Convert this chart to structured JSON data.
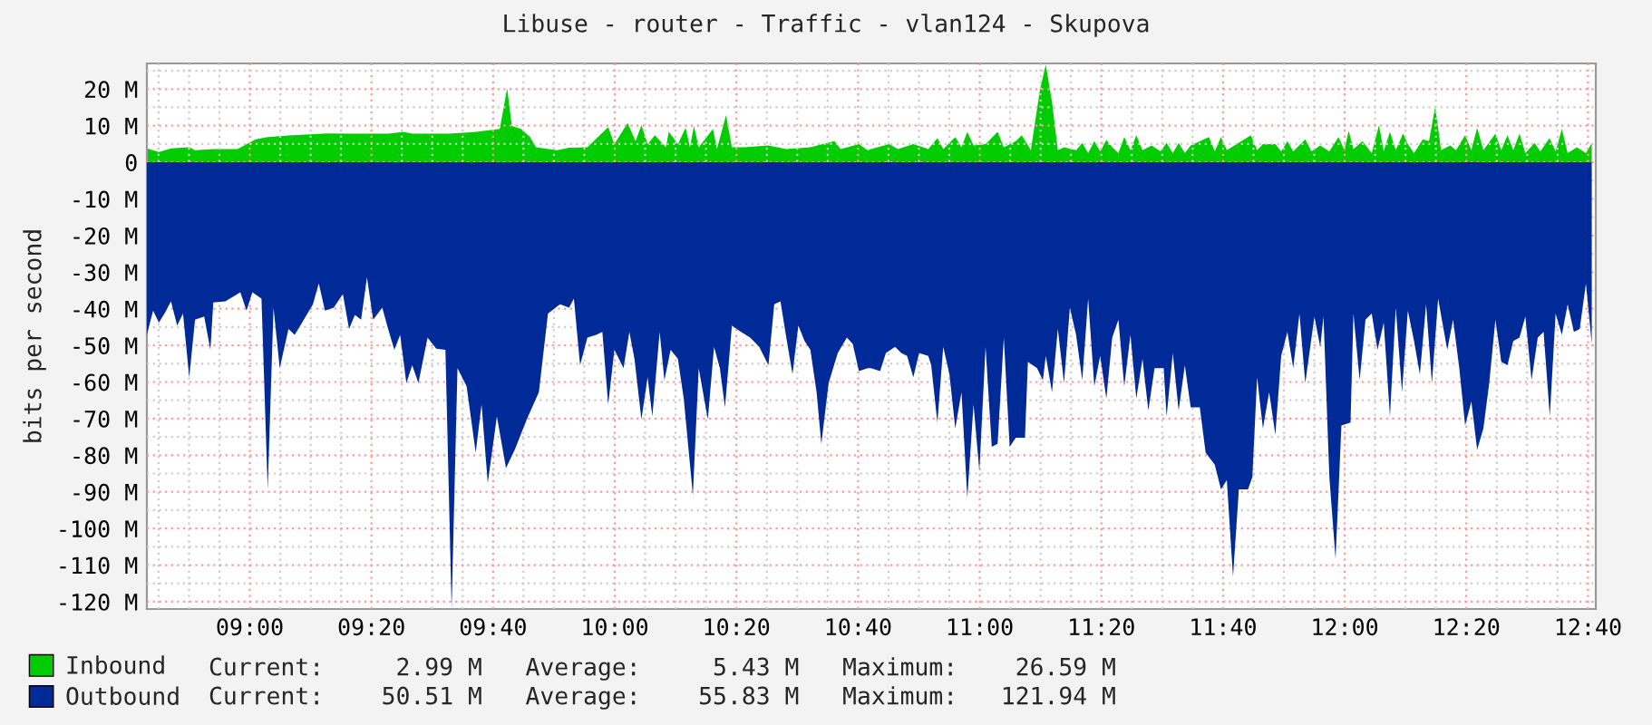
{
  "chart_data": {
    "type": "area",
    "title": "Libuse - router - Traffic - vlan124 - Skupova",
    "ylabel": "bits per second",
    "xlim": [
      8.718,
      12.688
    ],
    "xticks": [
      {
        "value": 9,
        "label": "09:00"
      },
      {
        "value": 9.3333,
        "label": "09:20"
      },
      {
        "value": 9.6667,
        "label": "09:40"
      },
      {
        "value": 10,
        "label": "10:00"
      },
      {
        "value": 10.3333,
        "label": "10:20"
      },
      {
        "value": 10.6667,
        "label": "10:40"
      },
      {
        "value": 11,
        "label": "11:00"
      },
      {
        "value": 11.3333,
        "label": "11:20"
      },
      {
        "value": 11.6667,
        "label": "11:40"
      },
      {
        "value": 12,
        "label": "12:00"
      },
      {
        "value": 12.3333,
        "label": "12:20"
      },
      {
        "value": 12.6667,
        "label": "12:40"
      }
    ],
    "ylim": [
      -122,
      27
    ],
    "yticks": [
      {
        "value": 20,
        "label": "20 M"
      },
      {
        "value": 10,
        "label": "10 M"
      },
      0,
      {
        "value": -10,
        "label": "-10 M"
      },
      {
        "value": -20,
        "label": "-20 M"
      },
      {
        "value": -30,
        "label": "-30 M"
      },
      {
        "value": -40,
        "label": "-40 M"
      },
      {
        "value": -50,
        "label": "-50 M"
      },
      {
        "value": -60,
        "label": "-60 M"
      },
      {
        "value": -70,
        "label": "-70 M"
      },
      {
        "value": -80,
        "label": "-80 M"
      },
      {
        "value": -90,
        "label": "-90 M"
      },
      {
        "value": -100,
        "label": "-100 M"
      },
      {
        "value": -110,
        "label": "-110 M"
      },
      {
        "value": -120,
        "label": "-120 M"
      }
    ],
    "grid": true,
    "legend": "bottom",
    "annotations": [
      "Current:     2.99 M   Average:     5.43 M   Maximum:    26.59 M",
      "Current:    50.51 M   Average:    55.83 M   Maximum:   121.94 M"
    ],
    "series": [
      {
        "name": "Inbound",
        "color": "#00cc00",
        "x": [
          8.718,
          8.751,
          8.784,
          8.834,
          8.85,
          8.9,
          8.966,
          9.016,
          9.049,
          9.115,
          9.214,
          9.28,
          9.379,
          9.421,
          9.445,
          9.545,
          9.619,
          9.685,
          9.705,
          9.718,
          9.743,
          9.768,
          9.784,
          9.842,
          9.875,
          9.925,
          9.982,
          9.999,
          10.035,
          10.057,
          10.073,
          10.09,
          10.11,
          10.14,
          10.148,
          10.173,
          10.194,
          10.206,
          10.217,
          10.23,
          10.269,
          10.28,
          10.305,
          10.321,
          10.354,
          10.421,
          10.47,
          10.536,
          10.602,
          10.619,
          10.669,
          10.693,
          10.702,
          10.752,
          10.776,
          10.818,
          10.859,
          10.884,
          10.9,
          10.933,
          10.95,
          10.966,
          10.983,
          11.016,
          11.049,
          11.066,
          11.099,
          11.115,
          11.14,
          11.165,
          11.181,
          11.198,
          11.214,
          11.231,
          11.264,
          11.281,
          11.297,
          11.314,
          11.33,
          11.347,
          11.363,
          11.38,
          11.396,
          11.413,
          11.429,
          11.446,
          11.471,
          11.495,
          11.512,
          11.529,
          11.545,
          11.562,
          11.578,
          11.628,
          11.644,
          11.661,
          11.677,
          11.743,
          11.76,
          11.776,
          11.81,
          11.826,
          11.843,
          11.859,
          11.892,
          11.909,
          11.933,
          11.958,
          11.983,
          11.999,
          12.011,
          12.024,
          12.049,
          12.074,
          12.094,
          12.107,
          12.124,
          12.14,
          12.16,
          12.173,
          12.19,
          12.214,
          12.231,
          12.248,
          12.264,
          12.289,
          12.305,
          12.33,
          12.347,
          12.363,
          12.38,
          12.413,
          12.429,
          12.446,
          12.462,
          12.479,
          12.495,
          12.52,
          12.536,
          12.561,
          12.578,
          12.595,
          12.611,
          12.636,
          12.661,
          12.677
        ],
        "values": [
          3.8,
          2.8,
          3.8,
          4.1,
          3.3,
          3.6,
          3.6,
          6.3,
          6.9,
          7.4,
          7.9,
          7.8,
          7.8,
          8.3,
          7.8,
          7.8,
          8.3,
          9.1,
          20.2,
          9.9,
          9.1,
          6.9,
          4.1,
          3.3,
          4.0,
          4.1,
          9.6,
          5.0,
          10.7,
          5.8,
          10.2,
          5.0,
          7.4,
          4.1,
          8.3,
          5.0,
          9.4,
          4.1,
          9.9,
          4.1,
          9.1,
          3.6,
          12.9,
          4.1,
          4.1,
          4.6,
          3.6,
          4.1,
          5.8,
          3.6,
          5.0,
          3.3,
          3.6,
          5.0,
          3.6,
          5.0,
          3.6,
          6.6,
          3.6,
          6.9,
          4.1,
          8.3,
          4.6,
          5.0,
          8.3,
          4.1,
          5.8,
          7.4,
          3.3,
          19.8,
          26.6,
          16.5,
          3.3,
          4.1,
          3.3,
          5.3,
          2.5,
          5.8,
          3.0,
          6.1,
          4.1,
          2.5,
          6.9,
          3.3,
          7.4,
          3.3,
          4.6,
          3.0,
          5.3,
          2.5,
          5.3,
          2.5,
          4.6,
          6.9,
          3.0,
          6.9,
          3.3,
          7.4,
          3.3,
          5.0,
          5.0,
          3.0,
          5.8,
          3.0,
          6.3,
          3.0,
          4.6,
          3.0,
          6.9,
          3.3,
          8.6,
          3.6,
          5.8,
          2.5,
          10.2,
          3.0,
          8.3,
          3.3,
          7.9,
          5.0,
          2.5,
          6.3,
          5.8,
          15.2,
          3.3,
          4.6,
          3.3,
          7.4,
          3.3,
          9.4,
          3.3,
          7.8,
          3.3,
          7.4,
          3.3,
          7.8,
          2.5,
          5.3,
          3.0,
          6.6,
          3.0,
          9.1,
          2.5,
          4.1,
          2.5,
          5.3
        ]
      },
      {
        "name": "Outbound",
        "color": "#002a97",
        "x": [
          8.718,
          8.735,
          8.751,
          8.768,
          8.784,
          8.801,
          8.817,
          8.834,
          8.85,
          8.875,
          8.892,
          8.9,
          8.933,
          8.974,
          8.991,
          9.007,
          9.032,
          9.049,
          9.065,
          9.082,
          9.106,
          9.123,
          9.148,
          9.173,
          9.189,
          9.206,
          9.23,
          9.255,
          9.272,
          9.288,
          9.305,
          9.321,
          9.338,
          9.363,
          9.379,
          9.396,
          9.412,
          9.429,
          9.445,
          9.462,
          9.487,
          9.511,
          9.536,
          9.553,
          9.569,
          9.594,
          9.619,
          9.635,
          9.652,
          9.677,
          9.702,
          9.726,
          9.759,
          9.792,
          9.817,
          9.85,
          9.875,
          9.888,
          9.905,
          9.925,
          9.949,
          9.966,
          9.982,
          9.999,
          10.024,
          10.04,
          10.054,
          10.073,
          10.09,
          10.103,
          10.123,
          10.136,
          10.153,
          10.173,
          10.189,
          10.214,
          10.23,
          10.255,
          10.272,
          10.288,
          10.302,
          10.321,
          10.346,
          10.371,
          10.396,
          10.421,
          10.437,
          10.454,
          10.47,
          10.487,
          10.503,
          10.52,
          10.536,
          10.553,
          10.566,
          10.586,
          10.611,
          10.636,
          10.652,
          10.669,
          10.693,
          10.702,
          10.727,
          10.743,
          10.768,
          10.785,
          10.801,
          10.818,
          10.834,
          10.859,
          10.867,
          10.884,
          10.9,
          10.917,
          10.933,
          10.95,
          10.966,
          10.983,
          10.999,
          11.016,
          11.033,
          11.049,
          11.066,
          11.082,
          11.099,
          11.124,
          11.132,
          11.157,
          11.173,
          11.181,
          11.198,
          11.214,
          11.231,
          11.247,
          11.264,
          11.281,
          11.297,
          11.314,
          11.33,
          11.347,
          11.363,
          11.38,
          11.396,
          11.413,
          11.429,
          11.446,
          11.462,
          11.479,
          11.504,
          11.512,
          11.529,
          11.545,
          11.562,
          11.578,
          11.603,
          11.619,
          11.644,
          11.661,
          11.677,
          11.694,
          11.71,
          11.735,
          11.747,
          11.76,
          11.776,
          11.793,
          11.81,
          11.826,
          11.843,
          11.859,
          11.876,
          11.892,
          11.917,
          11.933,
          11.942,
          11.958,
          11.975,
          11.991,
          12.016,
          12.024,
          12.041,
          12.057,
          12.074,
          12.09,
          12.107,
          12.124,
          12.14,
          12.157,
          12.173,
          12.19,
          12.206,
          12.223,
          12.239,
          12.256,
          12.281,
          12.297,
          12.314,
          12.33,
          12.347,
          12.363,
          12.38,
          12.396,
          12.413,
          12.429,
          12.446,
          12.462,
          12.479,
          12.495,
          12.512,
          12.529,
          12.545,
          12.562,
          12.578,
          12.595,
          12.611,
          12.628,
          12.644,
          12.661,
          12.677
        ],
        "values": [
          -47.1,
          -40.5,
          -43.8,
          -41.0,
          -38.0,
          -44.6,
          -41.3,
          -58.7,
          -43.0,
          -42.1,
          -51.2,
          -38.3,
          -38.0,
          -35.5,
          -40.5,
          -35.5,
          -37.2,
          -89.3,
          -39.7,
          -56.2,
          -45.5,
          -47.1,
          -43.0,
          -38.8,
          -33.1,
          -40.5,
          -39.7,
          -36.0,
          -45.5,
          -41.7,
          -43.0,
          -31.4,
          -43.0,
          -39.7,
          -45.5,
          -51.2,
          -47.1,
          -60.3,
          -55.4,
          -60.3,
          -47.9,
          -50.9,
          -51.2,
          -121.9,
          -56.2,
          -61.2,
          -79.3,
          -66.1,
          -87.6,
          -69.4,
          -83.5,
          -78.5,
          -70.2,
          -62.8,
          -41.3,
          -38.8,
          -39.7,
          -37.2,
          -55.4,
          -47.9,
          -47.1,
          -46.3,
          -66.1,
          -51.2,
          -56.2,
          -46.3,
          -53.7,
          -70.2,
          -58.7,
          -69.4,
          -46.3,
          -59.5,
          -51.2,
          -53.7,
          -64.5,
          -90.9,
          -56.2,
          -70.2,
          -50.4,
          -56.2,
          -66.9,
          -44.6,
          -46.3,
          -47.9,
          -50.4,
          -55.4,
          -38.8,
          -38.0,
          -47.9,
          -57.9,
          -44.6,
          -48.8,
          -51.2,
          -62.8,
          -76.9,
          -60.3,
          -52.1,
          -47.9,
          -49.6,
          -57.0,
          -56.2,
          -56.2,
          -57.0,
          -52.1,
          -50.4,
          -52.1,
          -52.9,
          -58.7,
          -52.1,
          -52.9,
          -55.4,
          -71.1,
          -50.4,
          -57.9,
          -72.7,
          -62.8,
          -91.7,
          -66.1,
          -84.3,
          -50.4,
          -77.7,
          -76.9,
          -47.9,
          -77.7,
          -75.2,
          -75.2,
          -54.5,
          -56.2,
          -59.5,
          -52.9,
          -62.8,
          -45.5,
          -60.3,
          -39.7,
          -47.1,
          -59.5,
          -37.2,
          -61.2,
          -52.9,
          -64.5,
          -47.9,
          -43.0,
          -61.2,
          -47.1,
          -64.5,
          -53.7,
          -67.8,
          -56.2,
          -56.2,
          -69.4,
          -52.1,
          -67.8,
          -55.4,
          -66.9,
          -66.9,
          -79.3,
          -82.6,
          -89.3,
          -86.8,
          -113.2,
          -89.3,
          -89.3,
          -86.0,
          -58.7,
          -72.7,
          -62.8,
          -74.4,
          -52.9,
          -46.3,
          -56.2,
          -41.3,
          -60.3,
          -42.1,
          -50.4,
          -42.1,
          -86.0,
          -108.3,
          -71.9,
          -71.1,
          -41.3,
          -59.5,
          -43.0,
          -41.3,
          -51.2,
          -43.8,
          -69.4,
          -39.7,
          -62.8,
          -40.5,
          -48.8,
          -57.9,
          -38.8,
          -60.3,
          -37.2,
          -51.2,
          -43.0,
          -56.2,
          -71.9,
          -65.3,
          -78.5,
          -72.7,
          -60.3,
          -43.0,
          -54.5,
          -55.4,
          -48.8,
          -47.9,
          -42.1,
          -59.5,
          -47.9,
          -46.3,
          -69.4,
          -41.3,
          -47.1,
          -38.8,
          -46.3,
          -45.5,
          -33.1,
          -49.6
        ]
      }
    ]
  }
}
